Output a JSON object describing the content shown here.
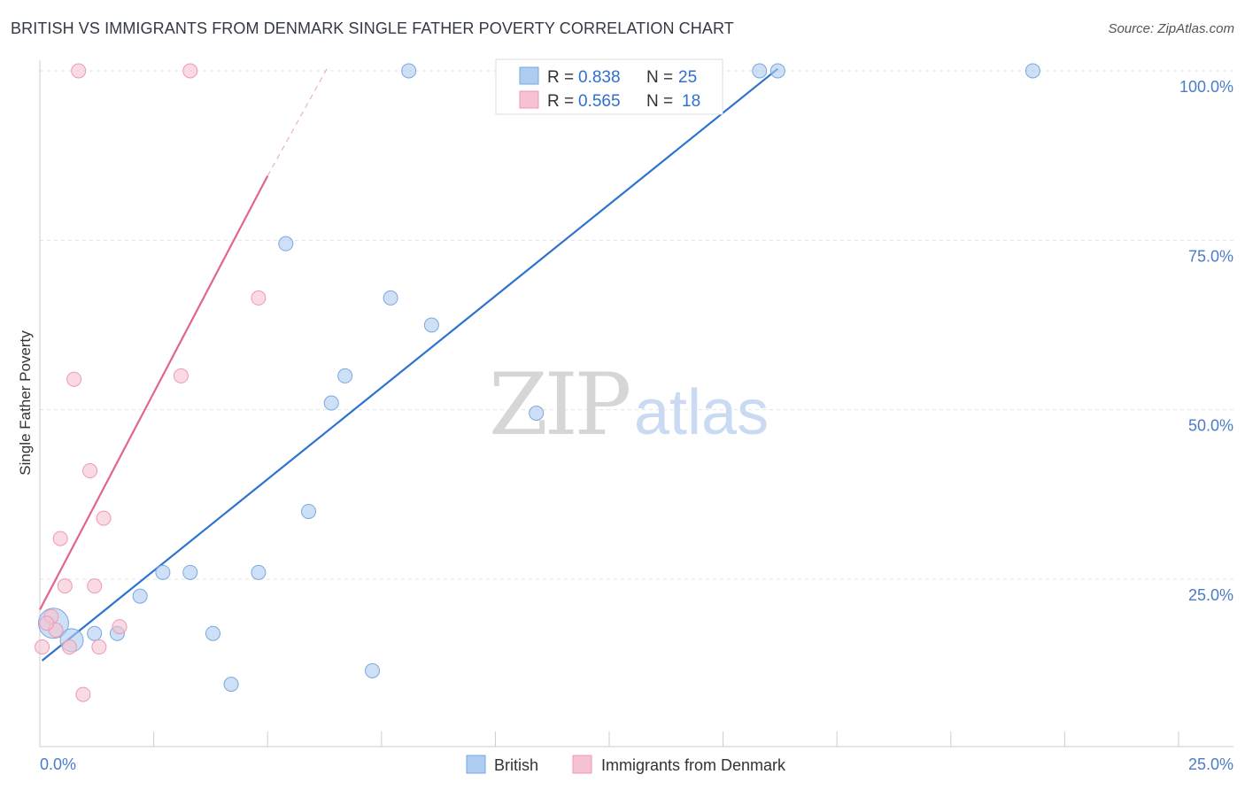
{
  "header": {
    "title": "BRITISH VS IMMIGRANTS FROM DENMARK SINGLE FATHER POVERTY CORRELATION CHART",
    "source": "Source: ZipAtlas.com"
  },
  "watermark": {
    "zip": "ZIP",
    "atlas": "atlas"
  },
  "legend_top": {
    "r_label": "R =",
    "n_label": "N =",
    "rows": [
      {
        "r": "0.838",
        "n": "25",
        "color": "#aecbf0"
      },
      {
        "r": "0.565",
        "n": "18",
        "color": "#f6c1d1"
      }
    ]
  },
  "legend_bottom": {
    "items": [
      {
        "label": "British",
        "color": "#aecbf0"
      },
      {
        "label": "Immigrants from Denmark",
        "color": "#f6c1d1"
      }
    ]
  },
  "chart_data": {
    "type": "scatter",
    "title": "BRITISH VS IMMIGRANTS FROM DENMARK SINGLE FATHER POVERTY CORRELATION CHART",
    "xlabel": "",
    "ylabel": "Single Father Poverty",
    "xlim": [
      0,
      25
    ],
    "ylim": [
      4,
      102
    ],
    "x_tick_labels": [
      "0.0%",
      "25.0%"
    ],
    "y_ticks": [
      25,
      50,
      75,
      100
    ],
    "y_tick_labels": [
      "25.0%",
      "50.0%",
      "75.0%",
      "100.0%"
    ],
    "grid": true,
    "legend_position": "top-center",
    "series": [
      {
        "name": "British",
        "color": "#aecbf0",
        "edge": "#7aa7e0",
        "line_color": "#2f73d0",
        "r": 0.838,
        "n": 25,
        "trend": {
          "x0": 0.05,
          "y0": 13.0,
          "x1": 16.2,
          "y1": 100.3
        },
        "points": [
          {
            "x": 0.3,
            "y": 18.5,
            "s": 3
          },
          {
            "x": 0.7,
            "y": 16.0,
            "s": 2
          },
          {
            "x": 1.2,
            "y": 17.0,
            "s": 1
          },
          {
            "x": 1.7,
            "y": 17.0,
            "s": 1
          },
          {
            "x": 2.2,
            "y": 22.5,
            "s": 1
          },
          {
            "x": 2.7,
            "y": 26.0,
            "s": 1
          },
          {
            "x": 3.3,
            "y": 26.0,
            "s": 1
          },
          {
            "x": 3.8,
            "y": 17.0,
            "s": 1
          },
          {
            "x": 4.2,
            "y": 9.5,
            "s": 1
          },
          {
            "x": 4.8,
            "y": 26.0,
            "s": 1
          },
          {
            "x": 5.4,
            "y": 74.5,
            "s": 1
          },
          {
            "x": 5.9,
            "y": 35.0,
            "s": 1
          },
          {
            "x": 6.4,
            "y": 51.0,
            "s": 1
          },
          {
            "x": 6.7,
            "y": 55.0,
            "s": 1
          },
          {
            "x": 7.3,
            "y": 11.5,
            "s": 1
          },
          {
            "x": 7.7,
            "y": 66.5,
            "s": 1
          },
          {
            "x": 8.1,
            "y": 100.0,
            "s": 1
          },
          {
            "x": 8.6,
            "y": 62.5,
            "s": 1
          },
          {
            "x": 10.2,
            "y": 100.0,
            "s": 1
          },
          {
            "x": 10.9,
            "y": 49.5,
            "s": 1
          },
          {
            "x": 13.3,
            "y": 100.0,
            "s": 1
          },
          {
            "x": 13.9,
            "y": 100.0,
            "s": 1
          },
          {
            "x": 15.8,
            "y": 100.0,
            "s": 1
          },
          {
            "x": 16.2,
            "y": 100.0,
            "s": 1
          },
          {
            "x": 21.8,
            "y": 100.0,
            "s": 1
          }
        ]
      },
      {
        "name": "Immigrants from Denmark",
        "color": "#f6c1d1",
        "edge": "#ec9ab4",
        "line_color": "#e0668f",
        "r": 0.565,
        "n": 18,
        "trend": {
          "x0": 0.0,
          "y0": 20.5,
          "x1": 5.0,
          "y1": 84.5
        },
        "trend_dashed_to": {
          "x": 6.3,
          "y": 100.3
        },
        "points": [
          {
            "x": 0.05,
            "y": 15.0,
            "s": 1
          },
          {
            "x": 0.25,
            "y": 19.5,
            "s": 1
          },
          {
            "x": 0.35,
            "y": 17.5,
            "s": 1
          },
          {
            "x": 0.45,
            "y": 31.0,
            "s": 1
          },
          {
            "x": 0.55,
            "y": 24.0,
            "s": 1
          },
          {
            "x": 0.65,
            "y": 15.0,
            "s": 1
          },
          {
            "x": 0.75,
            "y": 54.5,
            "s": 1
          },
          {
            "x": 0.85,
            "y": 100.0,
            "s": 1
          },
          {
            "x": 0.95,
            "y": 8.0,
            "s": 1
          },
          {
            "x": 1.1,
            "y": 41.0,
            "s": 1
          },
          {
            "x": 1.2,
            "y": 24.0,
            "s": 1
          },
          {
            "x": 1.3,
            "y": 15.0,
            "s": 1
          },
          {
            "x": 1.4,
            "y": 34.0,
            "s": 1
          },
          {
            "x": 1.75,
            "y": 18.0,
            "s": 1
          },
          {
            "x": 3.1,
            "y": 55.0,
            "s": 1
          },
          {
            "x": 3.3,
            "y": 100.0,
            "s": 1
          },
          {
            "x": 4.8,
            "y": 66.5,
            "s": 1
          },
          {
            "x": 0.15,
            "y": 18.5,
            "s": 1
          }
        ]
      }
    ]
  }
}
